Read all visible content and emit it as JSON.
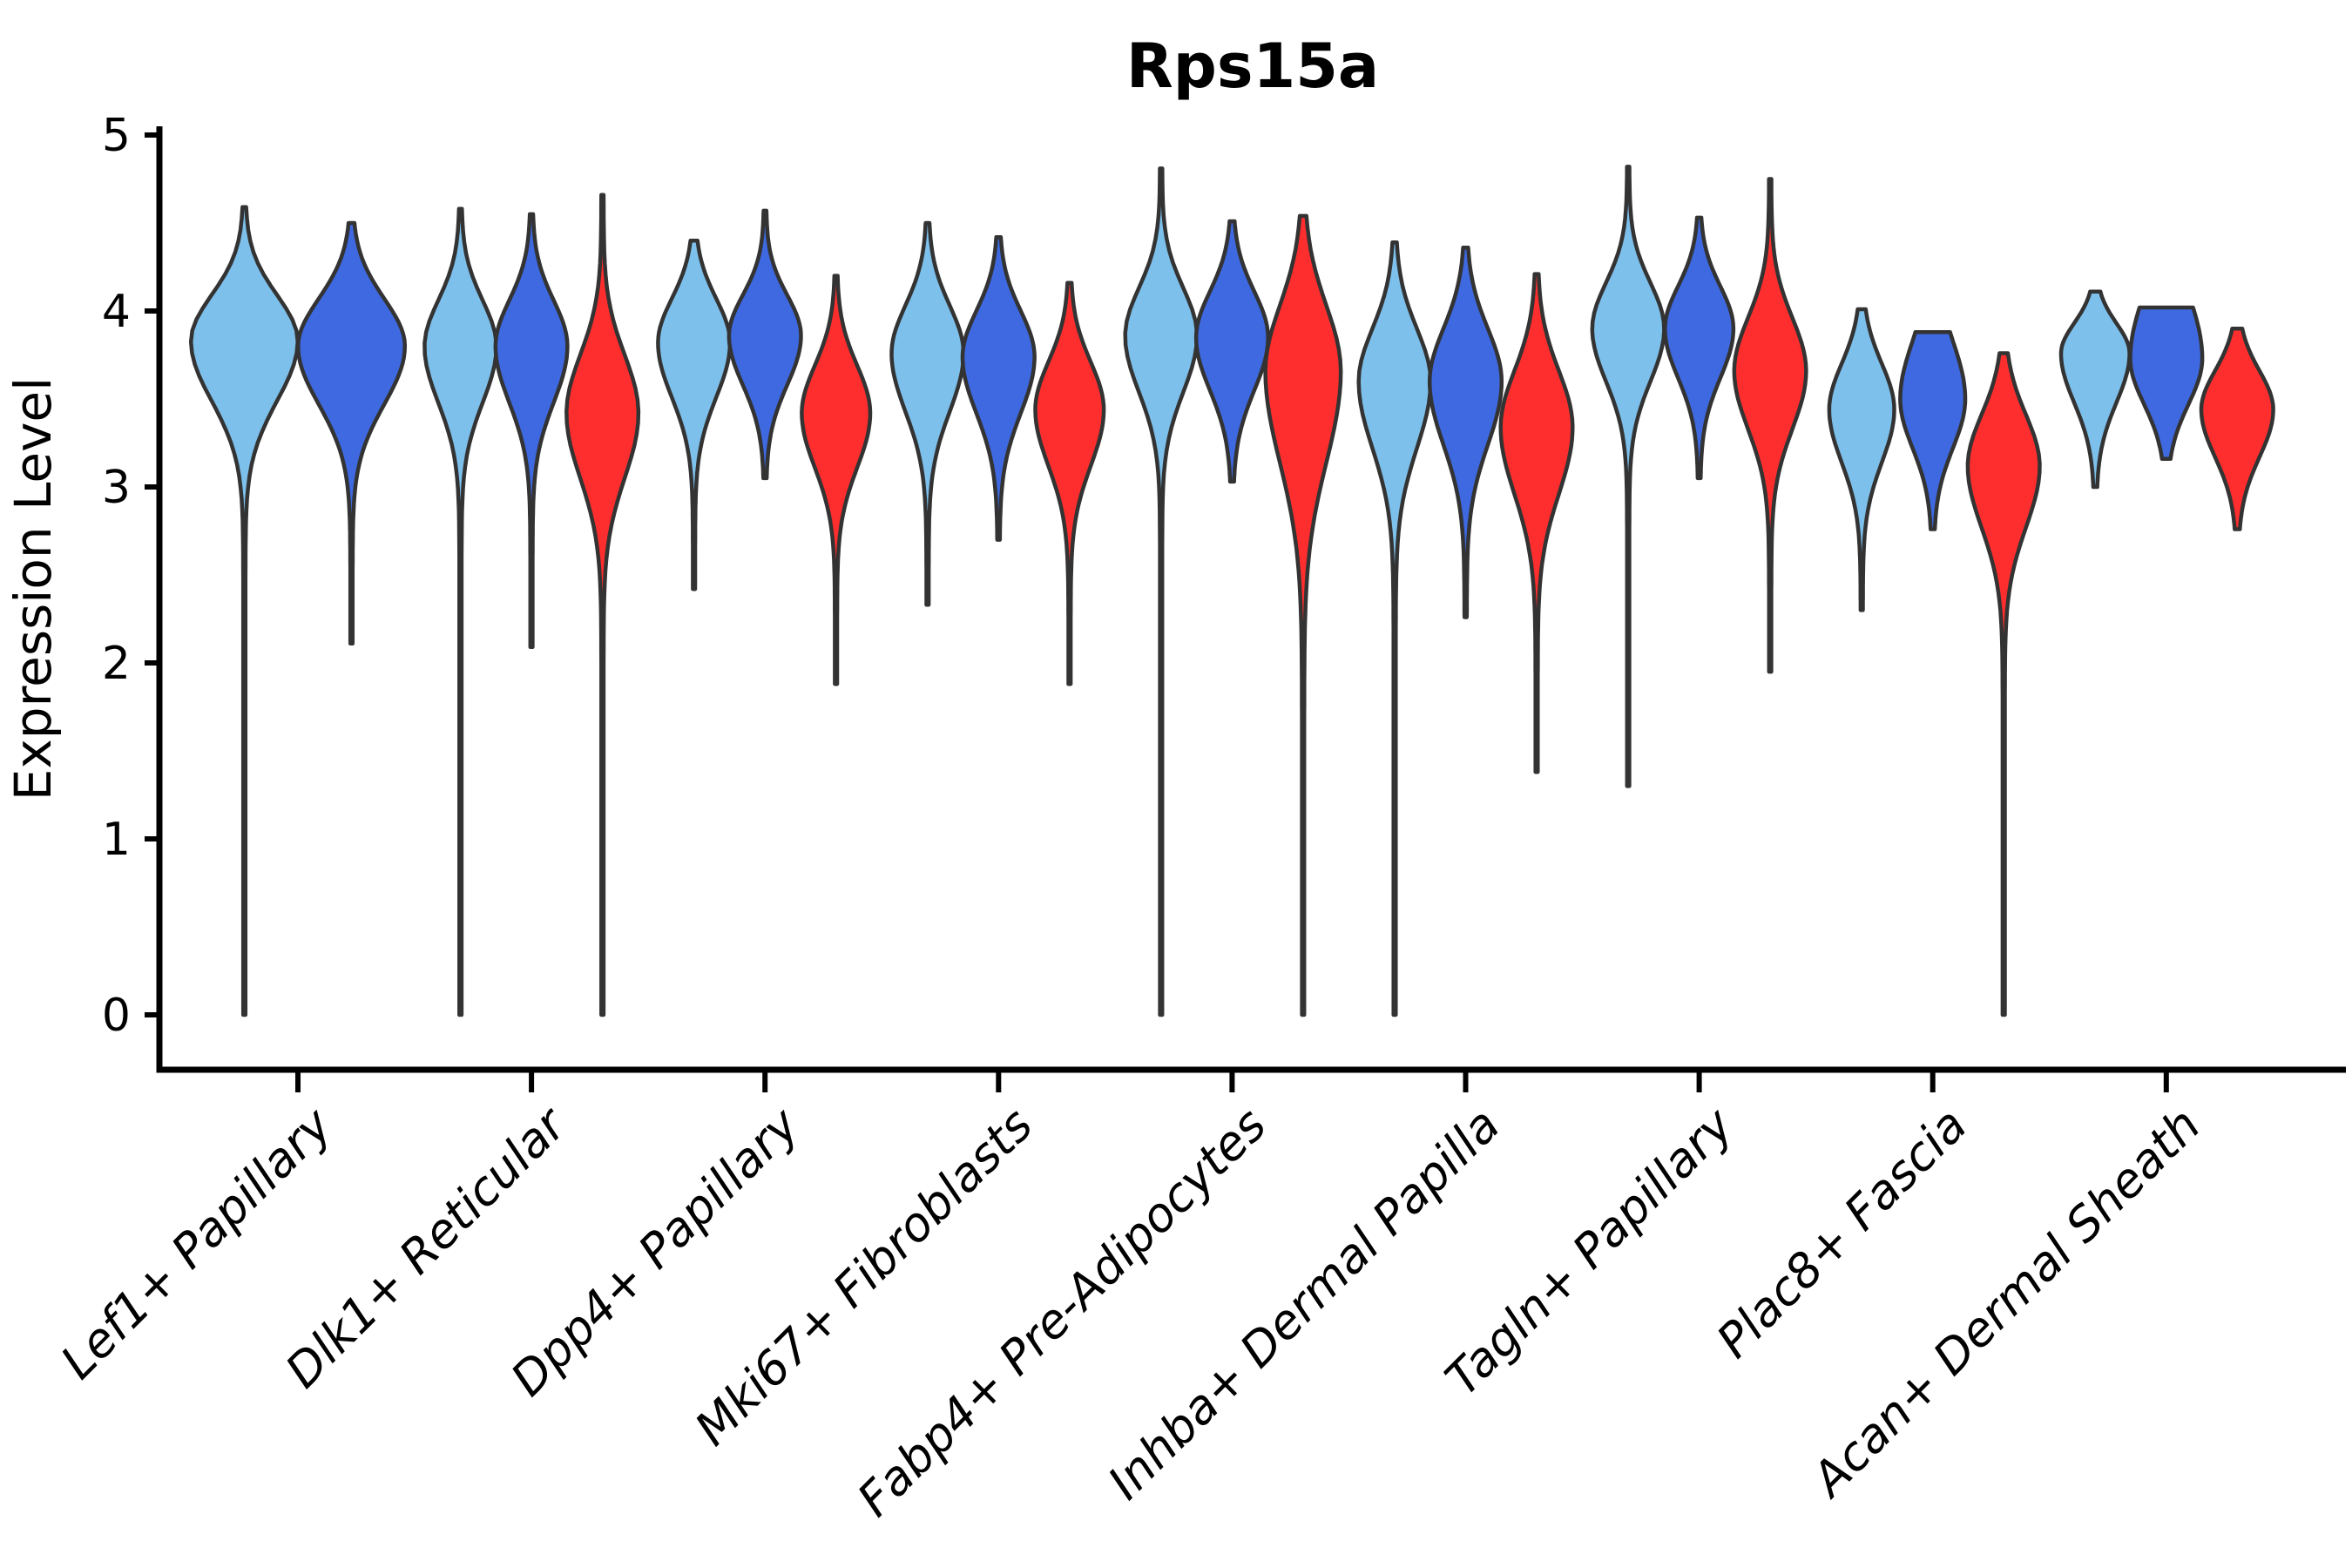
{
  "chart_data": {
    "type": "violin",
    "title": "Rps15a",
    "xlabel": "",
    "ylabel": "Expression Level",
    "ylim": [
      0,
      5
    ],
    "yticks": [
      "0",
      "1",
      "2",
      "3",
      "4",
      "5"
    ],
    "grid": false,
    "legend": "none",
    "categories": [
      "Lef1+ Papillary",
      "Dlk1+ Reticular",
      "Dpp4+ Papillary",
      "Mki67+ Fibroblasts",
      "Fabp4+ Pre-Adipocytes",
      "Inhba+ Dermal Papilla",
      "Tagln+ Papillary",
      "Plac8+ Fascia",
      "Acan+ Dermal Sheath"
    ],
    "series_colors": {
      "lightblue": "#7DC0EB",
      "darkblue": "#3E69E0",
      "red": "#FF2E2E"
    },
    "outline_color": "#333333",
    "axis_color": "#000000",
    "groups": [
      {
        "label": "Lef1+ Papillary",
        "violins": [
          {
            "series": "lightblue",
            "min": 0.0,
            "max": 4.59,
            "mode": 3.83,
            "spread_up": 0.26,
            "spread_down": 0.34,
            "width": 60
          },
          {
            "series": "darkblue",
            "min": 2.11,
            "max": 4.5,
            "mode": 3.8,
            "spread_up": 0.27,
            "spread_down": 0.33,
            "width": 60
          }
        ]
      },
      {
        "label": "Dlk1+ Reticular",
        "violins": [
          {
            "series": "lightblue",
            "min": 0.0,
            "max": 4.58,
            "mode": 3.8,
            "spread_up": 0.26,
            "spread_down": 0.32,
            "width": 40
          },
          {
            "series": "darkblue",
            "min": 2.09,
            "max": 4.55,
            "mode": 3.8,
            "spread_up": 0.26,
            "spread_down": 0.32,
            "width": 40
          },
          {
            "series": "red",
            "min": 0.0,
            "max": 4.66,
            "mode": 3.42,
            "spread_up": 0.33,
            "spread_down": 0.37,
            "width": 40
          }
        ]
      },
      {
        "label": "Dpp4+ Papillary",
        "violins": [
          {
            "series": "lightblue",
            "min": 2.42,
            "max": 4.4,
            "mode": 3.82,
            "spread_up": 0.25,
            "spread_down": 0.31,
            "width": 40
          },
          {
            "series": "darkblue",
            "min": 3.05,
            "max": 4.57,
            "mode": 3.86,
            "spread_up": 0.23,
            "spread_down": 0.28,
            "width": 40
          },
          {
            "series": "red",
            "min": 1.88,
            "max": 4.2,
            "mode": 3.42,
            "spread_up": 0.27,
            "spread_down": 0.31,
            "width": 38
          }
        ]
      },
      {
        "label": "Mki67+ Fibroblasts",
        "violins": [
          {
            "series": "lightblue",
            "min": 2.33,
            "max": 4.5,
            "mode": 3.76,
            "spread_up": 0.27,
            "spread_down": 0.33,
            "width": 40
          },
          {
            "series": "darkblue",
            "min": 2.7,
            "max": 4.42,
            "mode": 3.74,
            "spread_up": 0.26,
            "spread_down": 0.32,
            "width": 40
          },
          {
            "series": "red",
            "min": 1.88,
            "max": 4.16,
            "mode": 3.44,
            "spread_up": 0.27,
            "spread_down": 0.32,
            "width": 38
          }
        ]
      },
      {
        "label": "Fabp4+ Pre-Adipocytes",
        "violins": [
          {
            "series": "lightblue",
            "min": 0.0,
            "max": 4.81,
            "mode": 3.86,
            "spread_up": 0.27,
            "spread_down": 0.32,
            "width": 40
          },
          {
            "series": "darkblue",
            "min": 3.03,
            "max": 4.51,
            "mode": 3.85,
            "spread_up": 0.26,
            "spread_down": 0.3,
            "width": 40
          },
          {
            "series": "red",
            "min": 0.0,
            "max": 4.54,
            "mode": 3.66,
            "spread_up": 0.37,
            "spread_down": 0.52,
            "width": 42
          }
        ]
      },
      {
        "label": "Inhba+ Dermal Papilla",
        "violins": [
          {
            "series": "lightblue",
            "min": 0.0,
            "max": 4.39,
            "mode": 3.6,
            "spread_up": 0.3,
            "spread_down": 0.38,
            "width": 40
          },
          {
            "series": "darkblue",
            "min": 2.26,
            "max": 4.36,
            "mode": 3.6,
            "spread_up": 0.3,
            "spread_down": 0.36,
            "width": 40
          },
          {
            "series": "red",
            "min": 1.38,
            "max": 4.21,
            "mode": 3.34,
            "spread_up": 0.32,
            "spread_down": 0.38,
            "width": 40
          }
        ]
      },
      {
        "label": "Tagln+ Papillary",
        "violins": [
          {
            "series": "lightblue",
            "min": 1.3,
            "max": 4.82,
            "mode": 3.9,
            "spread_up": 0.26,
            "spread_down": 0.3,
            "width": 40
          },
          {
            "series": "darkblue",
            "min": 3.05,
            "max": 4.53,
            "mode": 3.9,
            "spread_up": 0.24,
            "spread_down": 0.28,
            "width": 38
          },
          {
            "series": "red",
            "min": 1.95,
            "max": 4.75,
            "mode": 3.66,
            "spread_up": 0.3,
            "spread_down": 0.33,
            "width": 40
          }
        ]
      },
      {
        "label": "Plac8+ Fascia",
        "violins": [
          {
            "series": "lightblue",
            "min": 2.3,
            "max": 4.01,
            "mode": 3.44,
            "spread_up": 0.26,
            "spread_down": 0.3,
            "width": 36
          },
          {
            "series": "darkblue",
            "min": 2.76,
            "max": 3.88,
            "mode": 3.5,
            "spread_up": 0.33,
            "spread_down": 0.28,
            "width": 36
          },
          {
            "series": "red",
            "min": 0.0,
            "max": 3.76,
            "mode": 3.12,
            "spread_up": 0.29,
            "spread_down": 0.35,
            "width": 40
          }
        ]
      },
      {
        "label": "Acan+ Dermal Sheath",
        "violins": [
          {
            "series": "lightblue",
            "min": 3.0,
            "max": 4.11,
            "mode": 3.76,
            "spread_up": 0.17,
            "spread_down": 0.28,
            "width": 38
          },
          {
            "series": "darkblue",
            "min": 3.16,
            "max": 4.02,
            "mode": 3.73,
            "spread_up": 0.37,
            "spread_down": 0.26,
            "width": 40
          },
          {
            "series": "red",
            "min": 2.76,
            "max": 3.9,
            "mode": 3.44,
            "spread_up": 0.22,
            "spread_down": 0.27,
            "width": 40
          }
        ]
      }
    ]
  }
}
